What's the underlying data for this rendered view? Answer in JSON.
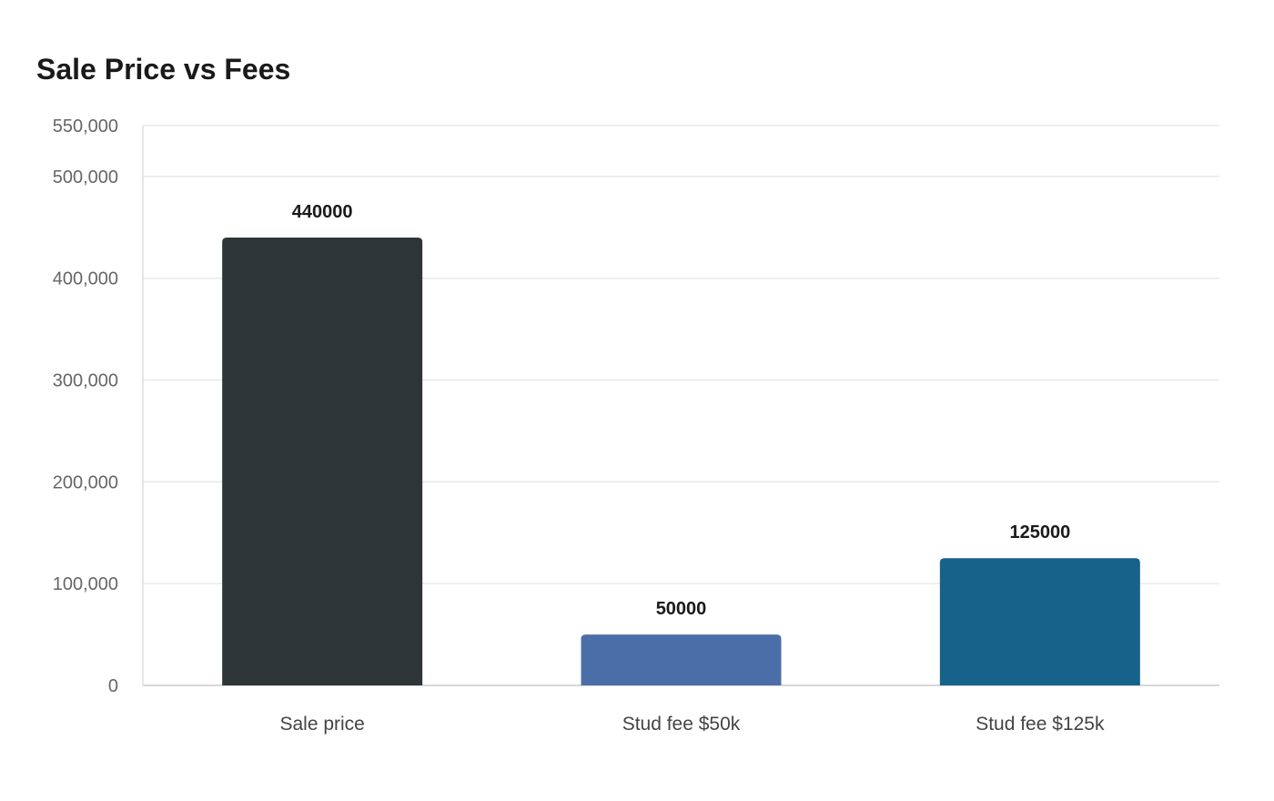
{
  "chart_data": {
    "type": "bar",
    "title": "Sale Price vs Fees",
    "categories": [
      "Sale price",
      "Stud fee $50k",
      "Stud fee $125k"
    ],
    "values": [
      440000,
      50000,
      125000
    ],
    "data_labels": [
      "440000",
      "50000",
      "125000"
    ],
    "colors": [
      "#2d3537",
      "#4c6ea8",
      "#17628a"
    ],
    "ylim": [
      0,
      550000
    ],
    "yticks": [
      0,
      100000,
      200000,
      300000,
      400000,
      500000,
      550000
    ],
    "ytick_labels": [
      "0",
      "100,000",
      "200,000",
      "300,000",
      "400,000",
      "500,000",
      "550,000"
    ],
    "xlabel": "",
    "ylabel": "",
    "grid": true,
    "legend": "none"
  }
}
